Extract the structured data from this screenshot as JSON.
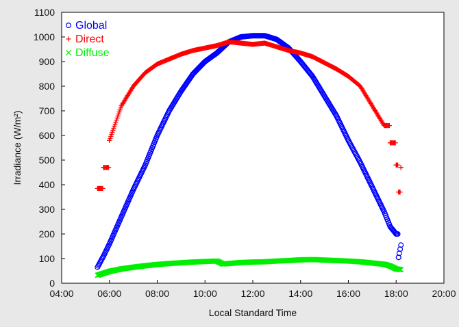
{
  "chart_data": {
    "type": "scatter",
    "title": "",
    "xlabel": "Local Standard Time",
    "ylabel": "Irradiance (W/m²)",
    "xlim": [
      4,
      20
    ],
    "ylim": [
      0,
      1100
    ],
    "x_ticks": [
      "04:00",
      "06:00",
      "08:00",
      "10:00",
      "12:00",
      "14:00",
      "16:00",
      "18:00",
      "20:00"
    ],
    "y_ticks": [
      "0",
      "100",
      "200",
      "300",
      "400",
      "500",
      "600",
      "700",
      "800",
      "900",
      "1000",
      "1100"
    ],
    "grid": false,
    "legend_position": "top-left",
    "series": [
      {
        "name": "Global",
        "marker": "circle",
        "color": "#0000ff",
        "x": [
          5.5,
          5.75,
          6.0,
          6.5,
          7.0,
          7.5,
          8.0,
          8.5,
          9.0,
          9.5,
          10.0,
          10.5,
          11.0,
          11.5,
          12.0,
          12.5,
          13.0,
          13.5,
          14.0,
          14.5,
          15.0,
          15.5,
          16.0,
          16.5,
          17.0,
          17.5,
          17.75,
          18.0,
          18.1,
          18.2
        ],
        "y": [
          65,
          110,
          160,
          270,
          380,
          480,
          600,
          700,
          780,
          850,
          900,
          935,
          980,
          1000,
          1005,
          1005,
          990,
          955,
          900,
          840,
          760,
          680,
          580,
          490,
          390,
          290,
          230,
          200,
          105,
          155
        ]
      },
      {
        "name": "Direct",
        "marker": "plus",
        "color": "#ff0000",
        "x": [
          5.5,
          5.75,
          6.0,
          6.5,
          7.0,
          7.5,
          8.0,
          8.5,
          9.0,
          9.5,
          10.0,
          10.5,
          11.0,
          11.5,
          12.0,
          12.5,
          13.0,
          13.5,
          14.0,
          14.5,
          15.0,
          15.5,
          16.0,
          16.5,
          17.0,
          17.5,
          17.75,
          18.0,
          18.1,
          18.2
        ],
        "y": [
          385,
          470,
          580,
          720,
          800,
          855,
          890,
          910,
          930,
          945,
          955,
          965,
          980,
          975,
          970,
          975,
          960,
          945,
          935,
          920,
          895,
          870,
          840,
          800,
          720,
          640,
          570,
          480,
          370,
          470
        ]
      },
      {
        "name": "Diffuse",
        "marker": "cross",
        "color": "#00ee00",
        "x": [
          5.5,
          5.75,
          6.0,
          6.5,
          7.0,
          7.5,
          8.0,
          8.5,
          9.0,
          9.5,
          10.0,
          10.5,
          10.75,
          11.0,
          11.5,
          12.0,
          12.5,
          13.0,
          13.5,
          14.0,
          14.5,
          15.0,
          15.5,
          16.0,
          16.5,
          17.0,
          17.5,
          17.75,
          18.0,
          18.2
        ],
        "y": [
          32,
          40,
          48,
          58,
          65,
          71,
          76,
          80,
          83,
          86,
          88,
          90,
          78,
          80,
          84,
          86,
          87,
          90,
          92,
          95,
          96,
          94,
          92,
          90,
          87,
          82,
          77,
          70,
          58,
          55
        ]
      }
    ]
  }
}
